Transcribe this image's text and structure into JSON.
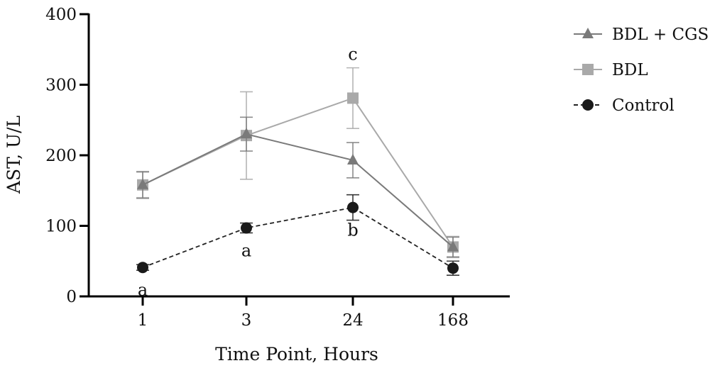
{
  "chart_data": {
    "type": "line",
    "xlabel": "Time Point, Hours",
    "ylabel": "AST, U/L",
    "categories": [
      "1",
      "3",
      "24",
      "168"
    ],
    "yticks": [
      0,
      100,
      200,
      300,
      400
    ],
    "ylim": [
      0,
      400
    ],
    "grid": false,
    "legend_position": "top-right",
    "series": [
      {
        "name": "BDL + CGS",
        "marker": "triangle",
        "line_style": "solid",
        "color": "#7a7a7a",
        "values": [
          158,
          230,
          193,
          70
        ],
        "errors": [
          19,
          24,
          25,
          14
        ]
      },
      {
        "name": "BDL",
        "marker": "square",
        "line_style": "solid",
        "color": "#a9a9a9",
        "values": [
          158,
          228,
          281,
          70
        ],
        "errors": [
          18,
          62,
          43,
          15
        ]
      },
      {
        "name": "Control",
        "marker": "circle",
        "line_style": "dashed",
        "color": "#1a1a1a",
        "values": [
          41,
          97,
          126,
          40
        ],
        "errors": [
          4,
          7,
          18,
          10
        ]
      }
    ],
    "annotations": [
      {
        "text": "a",
        "category": "1",
        "y": 41,
        "position": "below"
      },
      {
        "text": "a",
        "category": "3",
        "y": 97,
        "position": "below"
      },
      {
        "text": "b",
        "category": "24",
        "y": 126,
        "position": "below"
      },
      {
        "text": "c",
        "category": "24",
        "y": 325,
        "position": "above"
      }
    ]
  }
}
